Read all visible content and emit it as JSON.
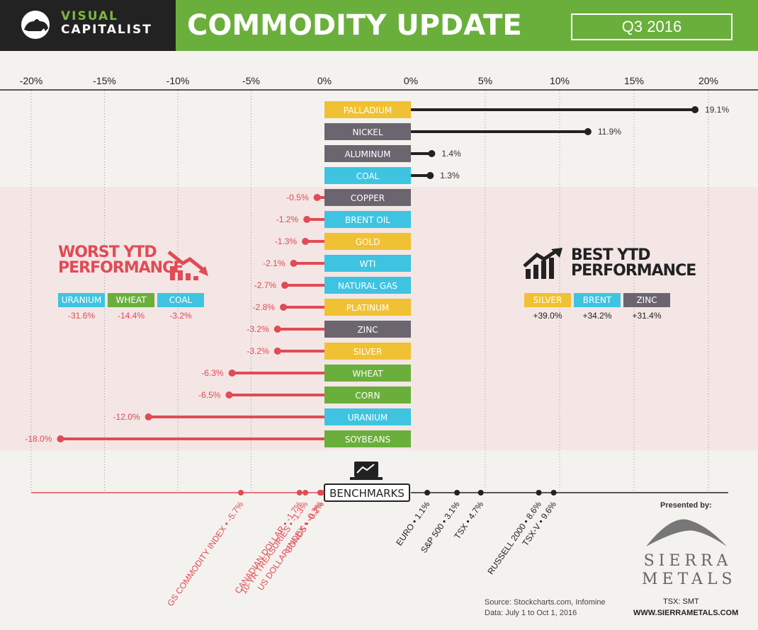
{
  "header": {
    "logo_line1": "VISUAL",
    "logo_line2": "CAPITALIST",
    "title": "COMMODITY UPDATE",
    "quarter": "Q3 2016"
  },
  "colors": {
    "header_green": "#6aaf3c",
    "yellow": "#f0c133",
    "gray": "#6b6570",
    "blue": "#3ec4e0",
    "green": "#6aaf3c",
    "negative_red": "#e04b55",
    "positive_dark": "#222222"
  },
  "chart_data": {
    "type": "bar",
    "xlim_negative": [
      -20,
      0
    ],
    "xlim_positive": [
      0,
      20
    ],
    "ticks_negative": [
      "-20%",
      "-15%",
      "-10%",
      "-5%",
      "0%"
    ],
    "ticks_positive": [
      "0%",
      "5%",
      "10%",
      "15%",
      "20%"
    ],
    "categories": [
      "PALLADIUM",
      "NICKEL",
      "ALUMINUM",
      "COAL",
      "COPPER",
      "BRENT OIL",
      "GOLD",
      "WTI",
      "NATURAL GAS",
      "PLATINUM",
      "ZINC",
      "SILVER",
      "WHEAT",
      "CORN",
      "URANIUM",
      "SOYBEANS"
    ],
    "values": [
      19.1,
      11.9,
      1.4,
      1.3,
      -0.5,
      -1.2,
      -1.3,
      -2.1,
      -2.7,
      -2.8,
      -3.2,
      -3.2,
      -6.3,
      -6.5,
      -12.0,
      -18.0
    ],
    "value_labels": [
      "19.1%",
      "11.9%",
      "1.4%",
      "1.3%",
      "-0.5%",
      "-1.2%",
      "-1.3%",
      "-2.1%",
      "-2.7%",
      "-2.8%",
      "-3.2%",
      "-3.2%",
      "-6.3%",
      "-6.5%",
      "-12.0%",
      "-18.0%"
    ],
    "label_colors": [
      "yellow",
      "gray",
      "gray",
      "blue",
      "gray",
      "blue",
      "yellow",
      "blue",
      "blue",
      "yellow",
      "gray",
      "yellow",
      "green",
      "green",
      "blue",
      "green"
    ],
    "benchmarks": {
      "title": "BENCHMARKS",
      "items": [
        {
          "label": "GS COMMODITY INDEX • -5.7%",
          "value": -5.7
        },
        {
          "label": "CANADIAN DOLLAR • -1.7%",
          "value": -1.7
        },
        {
          "label": "10-YR TREASURIES • -1.3%",
          "value": -1.3
        },
        {
          "label": "US DOLLAR INDEX • -0.3%",
          "value": -0.3
        },
        {
          "label": "BONDS • -0.2%",
          "value": -0.2
        },
        {
          "label": "EURO • 1.1%",
          "value": 1.1
        },
        {
          "label": "S&P 500 • 3.1%",
          "value": 3.1
        },
        {
          "label": "TSX • 4.7%",
          "value": 4.7
        },
        {
          "label": "RUSSELL 2000 • 8.6%",
          "value": 8.6
        },
        {
          "label": "TSX-V • 9.6%",
          "value": 9.6
        }
      ]
    }
  },
  "worst": {
    "title_line1": "WORST YTD",
    "title_line2": "PERFORMANCE",
    "items": [
      {
        "name": "URANIUM",
        "value": "-31.6%",
        "color": "blue"
      },
      {
        "name": "WHEAT",
        "value": "-14.4%",
        "color": "green"
      },
      {
        "name": "COAL",
        "value": "-3.2%",
        "color": "blue"
      }
    ]
  },
  "best": {
    "title_line1": "BEST YTD",
    "title_line2": "PERFORMANCE",
    "items": [
      {
        "name": "SILVER",
        "value": "+39.0%",
        "color": "yellow"
      },
      {
        "name": "BRENT",
        "value": "+34.2%",
        "color": "blue"
      },
      {
        "name": "ZINC",
        "value": "+31.4%",
        "color": "gray"
      }
    ]
  },
  "footer": {
    "source_line1": "Source: Stockcharts.com, Infomine",
    "source_line2": "Data: July 1 to Oct 1, 2016",
    "presented_by": "Presented by:",
    "sponsor_line1": "SIERRA",
    "sponsor_line2": "METALS",
    "ticker": "TSX: SMT",
    "website": "WWW.SIERRAMETALS.COM"
  }
}
